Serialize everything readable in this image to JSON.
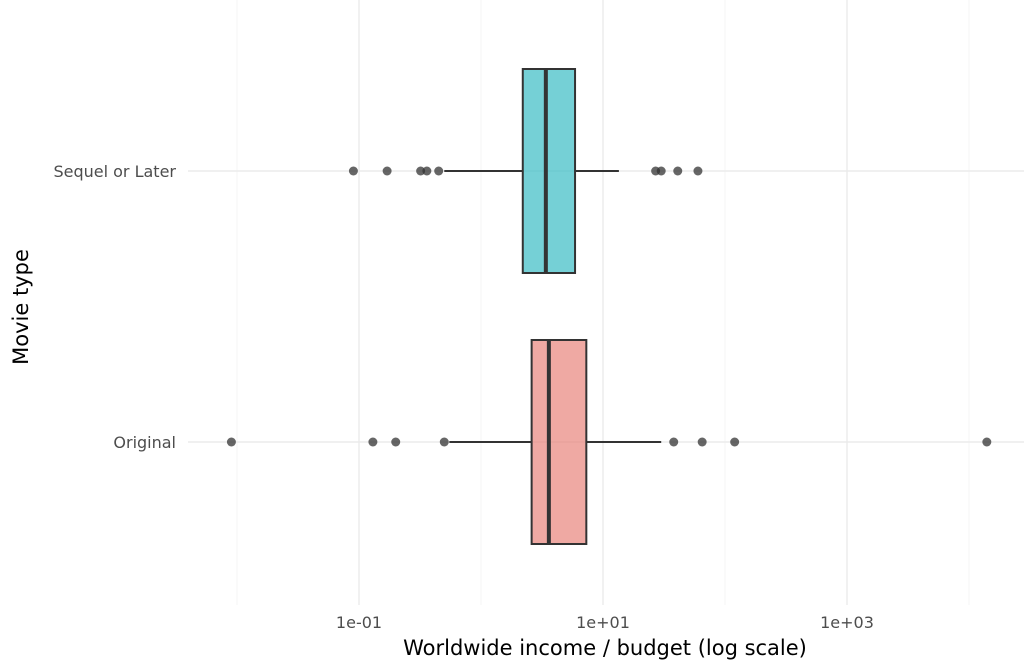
{
  "chart_data": {
    "type": "boxplot",
    "orientation": "horizontal",
    "title": "",
    "xlabel": "Worldwide income / budget (log scale)",
    "ylabel": "Movie type",
    "x_scale": "log10",
    "xlim": [
      0.006,
      25000
    ],
    "x_ticks": [
      {
        "value": 0.1,
        "label": "1e-01"
      },
      {
        "value": 10,
        "label": "1e+01"
      },
      {
        "value": 1000,
        "label": "1e+03"
      }
    ],
    "grid": true,
    "legend": "none",
    "categories": [
      "Original",
      "Sequel or Later"
    ],
    "series": [
      {
        "category": "Original",
        "color": "#e8847c",
        "whisker_low": 0.55,
        "q1": 2.6,
        "median": 3.6,
        "q3": 7.3,
        "whisker_high": 30,
        "outliers": [
          0.009,
          0.13,
          0.2,
          0.5,
          38,
          65,
          120,
          14000
        ]
      },
      {
        "category": "Sequel or Later",
        "color": "#3bbcc5",
        "whisker_low": 0.5,
        "q1": 2.2,
        "median": 3.4,
        "q3": 5.9,
        "whisker_high": 13.5,
        "outliers": [
          0.09,
          0.17,
          0.32,
          0.36,
          0.45,
          27,
          30,
          41,
          60
        ]
      }
    ]
  }
}
